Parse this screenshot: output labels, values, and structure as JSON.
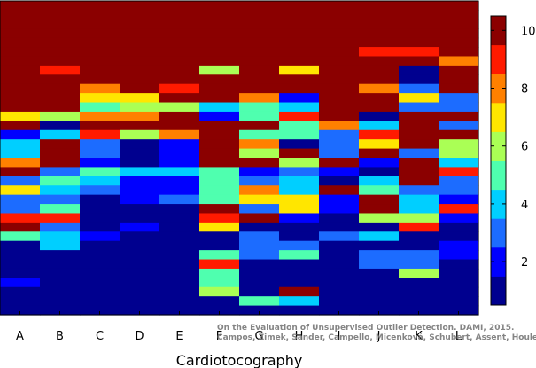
{
  "chart_data": {
    "type": "heatmap",
    "xlabel": "Cardiotocography",
    "categories": [
      "A",
      "B",
      "C",
      "D",
      "E",
      "F",
      "G",
      "H",
      "I",
      "J",
      "K",
      "L"
    ],
    "rows_top_to_bottom": 34,
    "colorbar": {
      "min": 0.5,
      "max": 10.5,
      "ticks": [
        2,
        4,
        6,
        8,
        10
      ]
    },
    "colormap": [
      "#00008f",
      "#0000ff",
      "#1c6cff",
      "#00cfff",
      "#4fffaf",
      "#aaff55",
      "#ffe600",
      "#ff8000",
      "#ff1a00",
      "#8b0000"
    ],
    "columns": [
      {
        "name": "A",
        "values": [
          10,
          10,
          10,
          10,
          10,
          10,
          10,
          10,
          10,
          10,
          10,
          10,
          7,
          10,
          2,
          4,
          4,
          8,
          10,
          3,
          7,
          3,
          3,
          9,
          10,
          5,
          1,
          1,
          1,
          1,
          2,
          1,
          1,
          1
        ]
      },
      {
        "name": "B",
        "values": [
          10,
          10,
          10,
          10,
          10,
          10,
          10,
          9,
          10,
          10,
          10,
          10,
          6,
          1,
          4,
          10,
          10,
          10,
          3,
          5,
          4,
          3,
          5,
          9,
          3,
          4,
          4,
          1,
          1,
          1,
          1,
          1,
          1,
          1
        ]
      },
      {
        "name": "C",
        "values": [
          10,
          10,
          10,
          10,
          10,
          10,
          10,
          10,
          10,
          8,
          7,
          5,
          8,
          10,
          9,
          3,
          3,
          2,
          5,
          4,
          3,
          1,
          1,
          1,
          1,
          2,
          1,
          1,
          1,
          1,
          1,
          1,
          1,
          1
        ]
      },
      {
        "name": "D",
        "values": [
          10,
          10,
          10,
          10,
          10,
          10,
          10,
          10,
          10,
          10,
          7,
          6,
          8,
          10,
          6,
          1,
          1,
          1,
          4,
          2,
          2,
          2,
          1,
          1,
          2,
          1,
          1,
          1,
          1,
          1,
          1,
          1,
          1,
          1
        ]
      },
      {
        "name": "E",
        "values": [
          10,
          10,
          10,
          10,
          10,
          10,
          10,
          10,
          10,
          9,
          10,
          6,
          10,
          10,
          8,
          2,
          2,
          2,
          4,
          2,
          2,
          3,
          1,
          1,
          1,
          1,
          1,
          1,
          1,
          1,
          1,
          1,
          1,
          1
        ]
      },
      {
        "name": "F",
        "values": [
          10,
          10,
          10,
          10,
          10,
          10,
          10,
          6,
          10,
          10,
          10,
          4,
          2,
          10,
          10,
          10,
          10,
          10,
          5,
          5,
          5,
          5,
          10,
          9,
          7,
          1,
          1,
          5,
          9,
          5,
          5,
          6,
          1,
          1
        ]
      },
      {
        "name": "G",
        "values": [
          10,
          10,
          10,
          10,
          10,
          10,
          10,
          10,
          10,
          10,
          8,
          5,
          5,
          10,
          5,
          8,
          6,
          10,
          2,
          3,
          8,
          7,
          3,
          10,
          1,
          3,
          3,
          3,
          1,
          1,
          1,
          1,
          5,
          1
        ]
      },
      {
        "name": "H",
        "values": [
          10,
          10,
          10,
          10,
          10,
          10,
          10,
          7,
          10,
          10,
          2,
          4,
          9,
          5,
          5,
          1,
          10,
          6,
          3,
          4,
          4,
          7,
          7,
          2,
          1,
          1,
          3,
          5,
          1,
          1,
          1,
          10,
          4,
          1
        ]
      },
      {
        "name": "I",
        "values": [
          10,
          10,
          10,
          10,
          10,
          10,
          10,
          10,
          10,
          10,
          10,
          10,
          10,
          8,
          3,
          3,
          3,
          10,
          2,
          1,
          10,
          2,
          2,
          1,
          1,
          3,
          1,
          1,
          1,
          1,
          1,
          1,
          1,
          1
        ]
      },
      {
        "name": "J",
        "values": [
          10,
          10,
          10,
          10,
          10,
          9,
          10,
          10,
          10,
          8,
          10,
          10,
          1,
          4,
          9,
          7,
          10,
          2,
          1,
          4,
          5,
          10,
          10,
          6,
          1,
          4,
          1,
          3,
          3,
          1,
          1,
          1,
          1,
          1
        ]
      },
      {
        "name": "K",
        "values": [
          10,
          10,
          10,
          10,
          10,
          9,
          10,
          1,
          1,
          3,
          7,
          3,
          10,
          10,
          10,
          10,
          3,
          10,
          10,
          10,
          3,
          4,
          4,
          6,
          9,
          1,
          1,
          3,
          3,
          6,
          1,
          1,
          1,
          1
        ]
      },
      {
        "name": "L",
        "values": [
          10,
          10,
          10,
          10,
          10,
          10,
          8,
          10,
          10,
          10,
          3,
          3,
          10,
          3,
          10,
          6,
          6,
          4,
          9,
          3,
          3,
          2,
          9,
          2,
          1,
          1,
          2,
          2,
          1,
          1,
          1,
          1,
          1,
          1
        ]
      }
    ]
  },
  "watermark": {
    "line1": "On the Evaluation of Unsupervised Outlier Detection. DAMI, 2015.",
    "line2": "Campos, Zimek, Sander, Campello, Micenková, Schubert, Assent, Houle"
  }
}
